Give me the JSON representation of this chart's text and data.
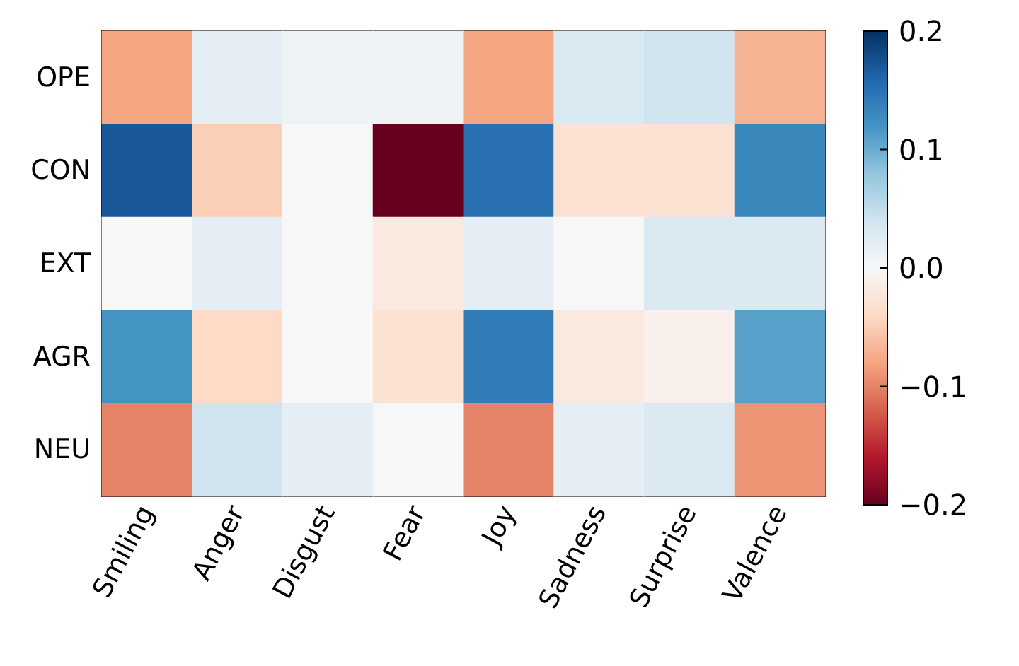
{
  "chart_data": {
    "type": "heatmap",
    "categories": [
      "Smiling",
      "Anger",
      "Disgust",
      "Fear",
      "Joy",
      "Sadness",
      "Surprise",
      "Valence"
    ],
    "y_categories": [
      "OPE",
      "CON",
      "EXT",
      "AGR",
      "NEU"
    ],
    "cells": [
      [
        -0.08,
        0.02,
        0.01,
        0.01,
        -0.08,
        0.03,
        0.04,
        -0.07
      ],
      [
        0.17,
        -0.05,
        0.0,
        -0.2,
        0.15,
        -0.03,
        -0.03,
        0.13
      ],
      [
        0.0,
        0.02,
        0.0,
        -0.02,
        0.02,
        0.0,
        0.03,
        0.03
      ],
      [
        0.12,
        -0.04,
        0.0,
        -0.03,
        0.14,
        -0.02,
        -0.01,
        0.11
      ],
      [
        -0.1,
        0.04,
        0.02,
        0.0,
        -0.1,
        0.02,
        0.03,
        -0.09
      ]
    ],
    "clim": [
      -0.2,
      0.2
    ],
    "cticks": [
      {
        "value": -0.2,
        "label": "−0.2"
      },
      {
        "value": -0.1,
        "label": "−0.1"
      },
      {
        "value": 0.0,
        "label": "0.0"
      },
      {
        "value": 0.1,
        "label": "0.1"
      },
      {
        "value": 0.2,
        "label": "0.2"
      }
    ]
  }
}
